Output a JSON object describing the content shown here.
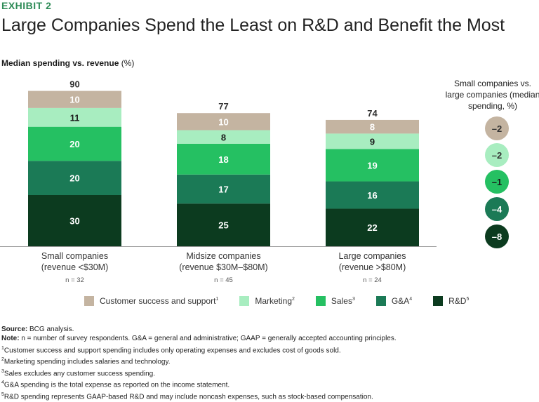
{
  "header": {
    "exhibit": "EXHIBIT 2",
    "title": "Large Companies Spend the Least on R&D and Benefit the Most",
    "subtitle_bold": "Median spending vs. revenue",
    "subtitle_unit": " (%)"
  },
  "chart_data": {
    "type": "stacked-bar",
    "title": "Large Companies Spend the Least on R&D and Benefit the Most",
    "ylabel": "Median spending vs. revenue (%)",
    "ylim": [
      0,
      90
    ],
    "categories": [
      {
        "name": "Small companies",
        "detail": "(revenue <$30M)",
        "n": "n = 32",
        "total": "90"
      },
      {
        "name": "Midsize companies",
        "detail": "(revenue $30M–$80M)",
        "n": "n = 45",
        "total": "77"
      },
      {
        "name": "Large companies",
        "detail": "(revenue >$80M)",
        "n": "n = 24",
        "total": "74"
      }
    ],
    "series": [
      {
        "name": "R&D",
        "sup": "5",
        "color": "#0c3b1f",
        "label_color": "#ffffff",
        "values": [
          30,
          25,
          22
        ]
      },
      {
        "name": "G&A",
        "sup": "4",
        "color": "#1b7a56",
        "label_color": "#ffffff",
        "values": [
          20,
          17,
          16
        ]
      },
      {
        "name": "Sales",
        "sup": "3",
        "color": "#25c062",
        "label_color": "#ffffff",
        "values": [
          20,
          18,
          19
        ]
      },
      {
        "name": "Marketing",
        "sup": "2",
        "color": "#a8edc0",
        "label_color": "#1a1a1a",
        "values": [
          11,
          8,
          9
        ]
      },
      {
        "name": "Customer success and support",
        "sup": "1",
        "color": "#c4b4a1",
        "label_color": "#ffffff",
        "values": [
          10,
          10,
          8
        ]
      }
    ],
    "difference": {
      "title": "Small companies vs. large companies (median spending, %)",
      "values": [
        {
          "series": "Customer success and support",
          "label": "–2",
          "color": "#c4b4a1",
          "text_color": "#333333"
        },
        {
          "series": "Marketing",
          "label": "–2",
          "color": "#a8edc0",
          "text_color": "#333333"
        },
        {
          "series": "Sales",
          "label": "–1",
          "color": "#25c062",
          "text_color": "#1a1a1a"
        },
        {
          "series": "G&A",
          "label": "–4",
          "color": "#1b7a56",
          "text_color": "#ffffff"
        },
        {
          "series": "R&D",
          "label": "–8",
          "color": "#0c3b1f",
          "text_color": "#ffffff"
        }
      ]
    }
  },
  "legend": [
    {
      "label": "Customer success and support",
      "sup": "1",
      "color": "#c4b4a1"
    },
    {
      "label": "Marketing",
      "sup": "2",
      "color": "#a8edc0"
    },
    {
      "label": "Sales",
      "sup": "3",
      "color": "#25c062"
    },
    {
      "label": "G&A",
      "sup": "4",
      "color": "#1b7a56"
    },
    {
      "label": "R&D",
      "sup": "5",
      "color": "#0c3b1f"
    }
  ],
  "footnotes": {
    "source_label": "Source:",
    "source_text": " BCG analysis.",
    "note_label": "Note:",
    "note_text": " n = number of survey respondents. G&A = general and administrative; GAAP = generally accepted accounting principles.",
    "items": [
      {
        "sup": "1",
        "text": "Customer success and support spending includes only operating expenses and excludes cost of goods sold."
      },
      {
        "sup": "2",
        "text": "Marketing spending includes salaries and technology."
      },
      {
        "sup": "3",
        "text": "Sales excludes any customer success spending."
      },
      {
        "sup": "4",
        "text": "G&A spending is the total expense as reported on the income statement."
      },
      {
        "sup": "5",
        "text": "R&D spending represents GAAP-based R&D and may include noncash expenses, such as stock-based compensation."
      }
    ]
  }
}
